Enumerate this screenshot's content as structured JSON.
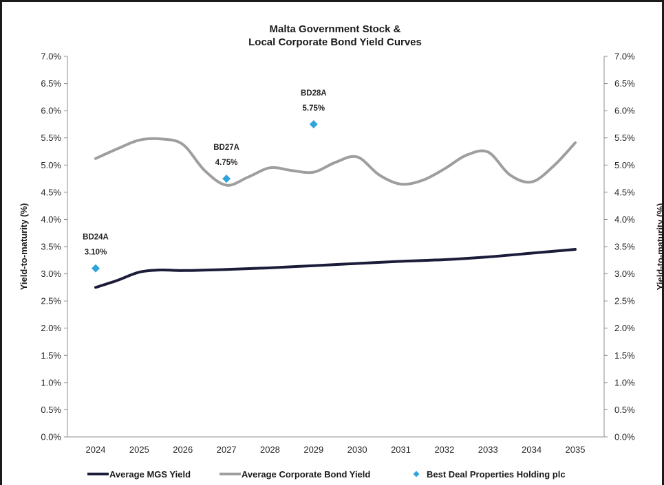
{
  "chart_data": {
    "type": "line",
    "title_line1": "Malta Government Stock &",
    "title_line2": "Local Corporate Bond Yield Curves",
    "ylabel_left": "Yield-to-maturity (%)",
    "ylabel_right": "Yield-to-maturity (%)",
    "xlabel": "",
    "ylim": [
      0,
      7
    ],
    "y_ticks": [
      "0.0%",
      "0.5%",
      "1.0%",
      "1.5%",
      "2.0%",
      "2.5%",
      "3.0%",
      "3.5%",
      "4.0%",
      "4.5%",
      "5.0%",
      "5.5%",
      "6.0%",
      "6.5%",
      "7.0%"
    ],
    "categories": [
      "2024",
      "2025",
      "2026",
      "2027",
      "2028",
      "2029",
      "2030",
      "2031",
      "2032",
      "2033",
      "2034",
      "2035"
    ],
    "series": [
      {
        "name": "Average MGS Yield",
        "color": "#1b1b3a",
        "x": [
          2024,
          2024.5,
          2025,
          2025.5,
          2026,
          2027,
          2028,
          2029,
          2030,
          2031,
          2032,
          2033,
          2034,
          2035
        ],
        "values": [
          2.75,
          2.88,
          3.03,
          3.07,
          3.06,
          3.08,
          3.11,
          3.15,
          3.19,
          3.23,
          3.26,
          3.31,
          3.38,
          3.45
        ]
      },
      {
        "name": "Average Corporate Bond Yield",
        "color": "#9e9e9e",
        "x": [
          2024,
          2024.5,
          2025,
          2025.5,
          2026,
          2026.5,
          2027,
          2027.5,
          2028,
          2028.5,
          2029,
          2029.5,
          2030,
          2030.5,
          2031,
          2031.5,
          2032,
          2032.5,
          2033,
          2033.5,
          2034,
          2034.5,
          2035
        ],
        "values": [
          5.12,
          5.3,
          5.46,
          5.48,
          5.38,
          4.9,
          4.63,
          4.78,
          4.95,
          4.9,
          4.87,
          5.05,
          5.15,
          4.82,
          4.65,
          4.72,
          4.93,
          5.18,
          5.24,
          4.82,
          4.69,
          4.98,
          5.41
        ]
      }
    ],
    "scatter": {
      "name": "Best Deal Properties Holding plc",
      "color": "#2ea3dc",
      "points": [
        {
          "x": 2024,
          "y": 3.1,
          "label": "BD24A",
          "value_label": "3.10%"
        },
        {
          "x": 2027,
          "y": 4.75,
          "label": "BD27A",
          "value_label": "4.75%"
        },
        {
          "x": 2029,
          "y": 5.75,
          "label": "BD28A",
          "value_label": "5.75%"
        }
      ]
    },
    "legend_position": "bottom",
    "grid": false
  }
}
